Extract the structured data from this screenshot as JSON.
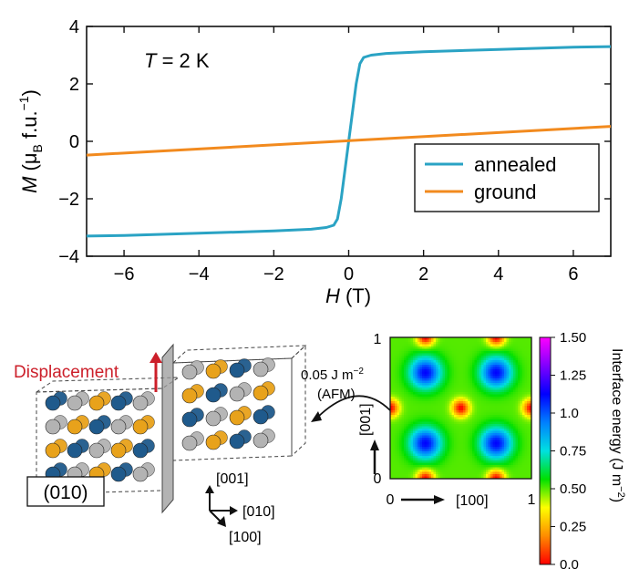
{
  "chart_data": [
    {
      "type": "line",
      "annotation": "T = 2 K",
      "annotation_parts": {
        "symbol": "T",
        "rest": " = 2 K"
      },
      "xlabel": "H (T)",
      "xlabel_parts": {
        "symbol": "H",
        "unit": " (T)"
      },
      "ylabel": "M (μB f.u.−1)",
      "ylabel_parts": {
        "symbol": "M",
        "open": " (μ",
        "sub": "B",
        "mid": " f.u.",
        "sup": "−1",
        "close": ")"
      },
      "xlim": [
        -7,
        7
      ],
      "ylim": [
        -4,
        4
      ],
      "xticks": [
        -6,
        -4,
        -2,
        0,
        2,
        4,
        6
      ],
      "xtick_labels": [
        "−6",
        "−4",
        "−2",
        "0",
        "2",
        "4",
        "6"
      ],
      "yticks": [
        -4,
        -2,
        0,
        2,
        4
      ],
      "ytick_labels": [
        "−4",
        "−2",
        "0",
        "2",
        "4"
      ],
      "grid": false,
      "legend_position": "lower-right",
      "series": [
        {
          "name": "annealed",
          "color": "#2aa3c4",
          "x": [
            -7,
            -6,
            -4,
            -2,
            -1,
            -0.6,
            -0.4,
            -0.3,
            -0.2,
            -0.1,
            0,
            0.1,
            0.2,
            0.3,
            0.4,
            0.6,
            1,
            2,
            4,
            6,
            7
          ],
          "y": [
            -3.3,
            -3.28,
            -3.2,
            -3.12,
            -3.06,
            -3.0,
            -2.92,
            -2.7,
            -2.0,
            -1.0,
            0,
            1.0,
            2.0,
            2.7,
            2.92,
            3.0,
            3.06,
            3.12,
            3.2,
            3.28,
            3.3
          ]
        },
        {
          "name": "ground",
          "color": "#f28a1e",
          "x": [
            -7,
            7
          ],
          "y": [
            -0.48,
            0.52
          ]
        }
      ]
    },
    {
      "type": "heatmap",
      "xlim": [
        0,
        1
      ],
      "ylim": [
        0,
        1
      ],
      "xtick_labels": [
        "0",
        "1"
      ],
      "ytick_labels": [
        "0",
        "1"
      ],
      "x_direction_label": "[100]",
      "y_direction_label": "[001]",
      "colorbar_label": "Interface energy (J m−2)",
      "colorbar_label_parts": {
        "main": "Interface energy (J m",
        "sup": "−2",
        "close": ")"
      },
      "colorbar_ticks": [
        "1.50",
        "1.25",
        "1.0",
        "0.75",
        "0.50",
        "0.25",
        "0.0"
      ],
      "colorbar_range": [
        0.0,
        1.5
      ],
      "colormap": [
        "#ff0000",
        "#ff8c00",
        "#ffff00",
        "#00e000",
        "#00e0e0",
        "#0080ff",
        "#0000ff",
        "#8000ff",
        "#ff00ff"
      ],
      "minima_positions": [
        [
          0.25,
          0.25
        ],
        [
          0.75,
          0.25
        ],
        [
          0.25,
          0.75
        ],
        [
          0.75,
          0.75
        ]
      ],
      "maxima_positions": [
        [
          0.5,
          0.5
        ],
        [
          0.0,
          0.5
        ],
        [
          1.0,
          0.5
        ],
        [
          0.25,
          0.0
        ],
        [
          0.75,
          0.0
        ],
        [
          0.25,
          1.0
        ],
        [
          0.75,
          1.0
        ]
      ],
      "afm_value_label": "0.05 J m",
      "afm_value_sup": "−2",
      "afm_label": "(AFM)"
    }
  ],
  "crystal": {
    "displacement_label": "Displacement",
    "plane_label": "(010)",
    "axis_labels": {
      "up": "[001]",
      "right": "[010]",
      "down": "[100]"
    },
    "atom_colors": {
      "blue": "#1f5a8c",
      "gold": "#e8a21b",
      "gray": "#b3b3b3"
    },
    "displacement_color": "#cc1f2a"
  }
}
